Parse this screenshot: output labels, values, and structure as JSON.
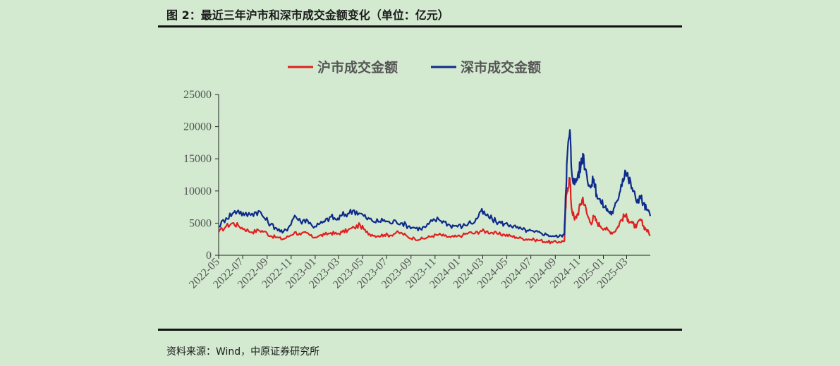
{
  "figure": {
    "title": "图 2：最近三年沪市和深市成交金额变化（单位：亿元）",
    "source": "资料来源：Wind，中原证券研究所"
  },
  "chart_data": {
    "type": "line",
    "title": "",
    "xlabel": "",
    "ylabel": "",
    "ylim": [
      0,
      25000
    ],
    "y_ticks": [
      "0",
      "5000",
      "10000",
      "15000",
      "20000",
      "25000"
    ],
    "x_ticks": [
      "2022-05",
      "2022-07",
      "2022-09",
      "2022-11",
      "2023-01",
      "2023-03",
      "2023-05",
      "2023-07",
      "2023-09",
      "2023-11",
      "2024-01",
      "2024-03",
      "2024-05",
      "2024-07",
      "2024-09",
      "2024-11",
      "2025-01",
      "2025-03"
    ],
    "x_range": [
      "2022-05-01",
      "2025-04-30"
    ],
    "grid": false,
    "legend": "top",
    "series": [
      {
        "name": "沪市成交金额",
        "color": "#e02020",
        "points": [
          [
            "2022-05-01",
            3600
          ],
          [
            "2022-05-20",
            4500
          ],
          [
            "2022-06-05",
            5000
          ],
          [
            "2022-06-20",
            4600
          ],
          [
            "2022-07-05",
            4100
          ],
          [
            "2022-07-25",
            3600
          ],
          [
            "2022-08-10",
            3900
          ],
          [
            "2022-08-25",
            3700
          ],
          [
            "2022-09-10",
            3000
          ],
          [
            "2022-09-25",
            2800
          ],
          [
            "2022-10-10",
            2500
          ],
          [
            "2022-10-25",
            2900
          ],
          [
            "2022-11-10",
            3600
          ],
          [
            "2022-11-25",
            3200
          ],
          [
            "2022-12-10",
            3500
          ],
          [
            "2022-12-25",
            2800
          ],
          [
            "2023-01-10",
            3000
          ],
          [
            "2023-01-25",
            3200
          ],
          [
            "2023-02-10",
            3500
          ],
          [
            "2023-02-25",
            3300
          ],
          [
            "2023-03-10",
            3600
          ],
          [
            "2023-03-25",
            3900
          ],
          [
            "2023-04-10",
            4300
          ],
          [
            "2023-04-25",
            4700
          ],
          [
            "2023-05-10",
            3600
          ],
          [
            "2023-05-25",
            3200
          ],
          [
            "2023-06-10",
            3000
          ],
          [
            "2023-06-25",
            3200
          ],
          [
            "2023-07-10",
            3100
          ],
          [
            "2023-07-25",
            3500
          ],
          [
            "2023-08-10",
            3400
          ],
          [
            "2023-08-25",
            2800
          ],
          [
            "2023-09-10",
            2600
          ],
          [
            "2023-09-25",
            2500
          ],
          [
            "2023-10-10",
            2700
          ],
          [
            "2023-10-25",
            3000
          ],
          [
            "2023-11-10",
            3200
          ],
          [
            "2023-11-25",
            3000
          ],
          [
            "2023-12-10",
            2800
          ],
          [
            "2023-12-25",
            2900
          ],
          [
            "2024-01-10",
            3100
          ],
          [
            "2024-01-25",
            3500
          ],
          [
            "2024-02-10",
            3400
          ],
          [
            "2024-02-25",
            3800
          ],
          [
            "2024-03-10",
            3700
          ],
          [
            "2024-03-25",
            3500
          ],
          [
            "2024-04-10",
            3300
          ],
          [
            "2024-04-25",
            3200
          ],
          [
            "2024-05-10",
            3000
          ],
          [
            "2024-05-25",
            2800
          ],
          [
            "2024-06-10",
            2600
          ],
          [
            "2024-06-25",
            2500
          ],
          [
            "2024-07-10",
            2400
          ],
          [
            "2024-07-25",
            2300
          ],
          [
            "2024-08-10",
            2100
          ],
          [
            "2024-08-25",
            2000
          ],
          [
            "2024-09-10",
            2100
          ],
          [
            "2024-09-24",
            2200
          ],
          [
            "2024-09-27",
            7000
          ],
          [
            "2024-10-01",
            10500
          ],
          [
            "2024-10-08",
            12000
          ],
          [
            "2024-10-12",
            7500
          ],
          [
            "2024-10-20",
            5500
          ],
          [
            "2024-10-28",
            6500
          ],
          [
            "2024-11-05",
            8000
          ],
          [
            "2024-11-10",
            9000
          ],
          [
            "2024-11-20",
            6500
          ],
          [
            "2024-11-30",
            5000
          ],
          [
            "2024-12-08",
            6000
          ],
          [
            "2024-12-15",
            5200
          ],
          [
            "2024-12-25",
            4500
          ],
          [
            "2025-01-05",
            4200
          ],
          [
            "2025-01-15",
            3800
          ],
          [
            "2025-01-25",
            3500
          ],
          [
            "2025-02-05",
            4200
          ],
          [
            "2025-02-15",
            5500
          ],
          [
            "2025-02-25",
            6200
          ],
          [
            "2025-03-05",
            5600
          ],
          [
            "2025-03-15",
            5000
          ],
          [
            "2025-03-25",
            4300
          ],
          [
            "2025-04-05",
            5600
          ],
          [
            "2025-04-12",
            4600
          ],
          [
            "2025-04-20",
            4000
          ],
          [
            "2025-04-30",
            3200
          ]
        ]
      },
      {
        "name": "深市成交金额",
        "color": "#0e2a8a",
        "points": [
          [
            "2022-05-01",
            4500
          ],
          [
            "2022-05-20",
            5800
          ],
          [
            "2022-06-05",
            6500
          ],
          [
            "2022-06-20",
            7000
          ],
          [
            "2022-07-05",
            6200
          ],
          [
            "2022-07-25",
            6500
          ],
          [
            "2022-08-10",
            6900
          ],
          [
            "2022-08-25",
            5800
          ],
          [
            "2022-09-10",
            4800
          ],
          [
            "2022-09-25",
            4200
          ],
          [
            "2022-10-10",
            3500
          ],
          [
            "2022-10-25",
            4300
          ],
          [
            "2022-11-10",
            6200
          ],
          [
            "2022-11-25",
            5200
          ],
          [
            "2022-12-10",
            5600
          ],
          [
            "2022-12-25",
            4500
          ],
          [
            "2023-01-10",
            4800
          ],
          [
            "2023-01-25",
            5200
          ],
          [
            "2023-02-10",
            6000
          ],
          [
            "2023-02-25",
            5500
          ],
          [
            "2023-03-10",
            6200
          ],
          [
            "2023-03-25",
            6500
          ],
          [
            "2023-04-10",
            7000
          ],
          [
            "2023-04-25",
            6500
          ],
          [
            "2023-05-10",
            5800
          ],
          [
            "2023-05-25",
            5400
          ],
          [
            "2023-06-10",
            5200
          ],
          [
            "2023-06-25",
            5500
          ],
          [
            "2023-07-10",
            5000
          ],
          [
            "2023-07-25",
            5300
          ],
          [
            "2023-08-10",
            5000
          ],
          [
            "2023-08-25",
            4500
          ],
          [
            "2023-09-10",
            4300
          ],
          [
            "2023-09-25",
            4100
          ],
          [
            "2023-10-10",
            4500
          ],
          [
            "2023-10-25",
            5300
          ],
          [
            "2023-11-10",
            5600
          ],
          [
            "2023-11-25",
            5200
          ],
          [
            "2023-12-10",
            4600
          ],
          [
            "2023-12-25",
            4600
          ],
          [
            "2024-01-10",
            4500
          ],
          [
            "2024-01-25",
            5000
          ],
          [
            "2024-02-10",
            5200
          ],
          [
            "2024-02-25",
            6800
          ],
          [
            "2024-03-10",
            6200
          ],
          [
            "2024-03-25",
            5600
          ],
          [
            "2024-04-10",
            5100
          ],
          [
            "2024-04-25",
            4900
          ],
          [
            "2024-05-10",
            4700
          ],
          [
            "2024-05-25",
            4300
          ],
          [
            "2024-06-10",
            4000
          ],
          [
            "2024-06-25",
            3800
          ],
          [
            "2024-07-10",
            3600
          ],
          [
            "2024-07-25",
            3500
          ],
          [
            "2024-08-10",
            3200
          ],
          [
            "2024-08-25",
            3000
          ],
          [
            "2024-09-10",
            2900
          ],
          [
            "2024-09-24",
            3300
          ],
          [
            "2024-09-27",
            9000
          ],
          [
            "2024-10-01",
            15000
          ],
          [
            "2024-10-08",
            19500
          ],
          [
            "2024-10-12",
            13500
          ],
          [
            "2024-10-20",
            11000
          ],
          [
            "2024-10-28",
            12500
          ],
          [
            "2024-11-05",
            14000
          ],
          [
            "2024-11-10",
            15800
          ],
          [
            "2024-11-20",
            12500
          ],
          [
            "2024-11-30",
            10500
          ],
          [
            "2024-12-08",
            11800
          ],
          [
            "2024-12-15",
            9500
          ],
          [
            "2024-12-25",
            8300
          ],
          [
            "2025-01-05",
            7500
          ],
          [
            "2025-01-15",
            6800
          ],
          [
            "2025-01-25",
            6500
          ],
          [
            "2025-02-05",
            8500
          ],
          [
            "2025-02-15",
            11000
          ],
          [
            "2025-02-25",
            13200
          ],
          [
            "2025-03-05",
            12000
          ],
          [
            "2025-03-15",
            10500
          ],
          [
            "2025-03-25",
            8500
          ],
          [
            "2025-04-05",
            9200
          ],
          [
            "2025-04-12",
            8000
          ],
          [
            "2025-04-20",
            7200
          ],
          [
            "2025-04-30",
            6100
          ]
        ]
      }
    ]
  }
}
